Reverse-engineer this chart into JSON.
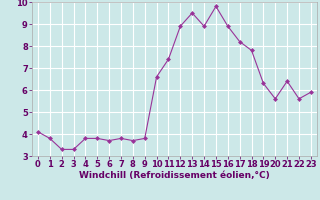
{
  "x": [
    0,
    1,
    2,
    3,
    4,
    5,
    6,
    7,
    8,
    9,
    10,
    11,
    12,
    13,
    14,
    15,
    16,
    17,
    18,
    19,
    20,
    21,
    22,
    23
  ],
  "y": [
    4.1,
    3.8,
    3.3,
    3.3,
    3.8,
    3.8,
    3.7,
    3.8,
    3.7,
    3.8,
    6.6,
    7.4,
    8.9,
    9.5,
    8.9,
    9.8,
    8.9,
    8.2,
    7.8,
    6.3,
    5.6,
    6.4,
    5.6,
    5.9
  ],
  "line_color": "#993399",
  "marker": "D",
  "marker_size": 2,
  "line_width": 0.8,
  "xlabel": "Windchill (Refroidissement éolien,°C)",
  "xlabel_fontsize": 6.5,
  "bg_color": "#cce8e8",
  "grid_color": "#ffffff",
  "tick_label_fontsize": 6,
  "ylim": [
    3,
    10
  ],
  "yticks": [
    3,
    4,
    5,
    6,
    7,
    8,
    9,
    10
  ],
  "xlim": [
    -0.5,
    23.5
  ],
  "xticks": [
    0,
    1,
    2,
    3,
    4,
    5,
    6,
    7,
    8,
    9,
    10,
    11,
    12,
    13,
    14,
    15,
    16,
    17,
    18,
    19,
    20,
    21,
    22,
    23
  ],
  "spine_color": "#aaaaaa",
  "text_color": "#660066"
}
